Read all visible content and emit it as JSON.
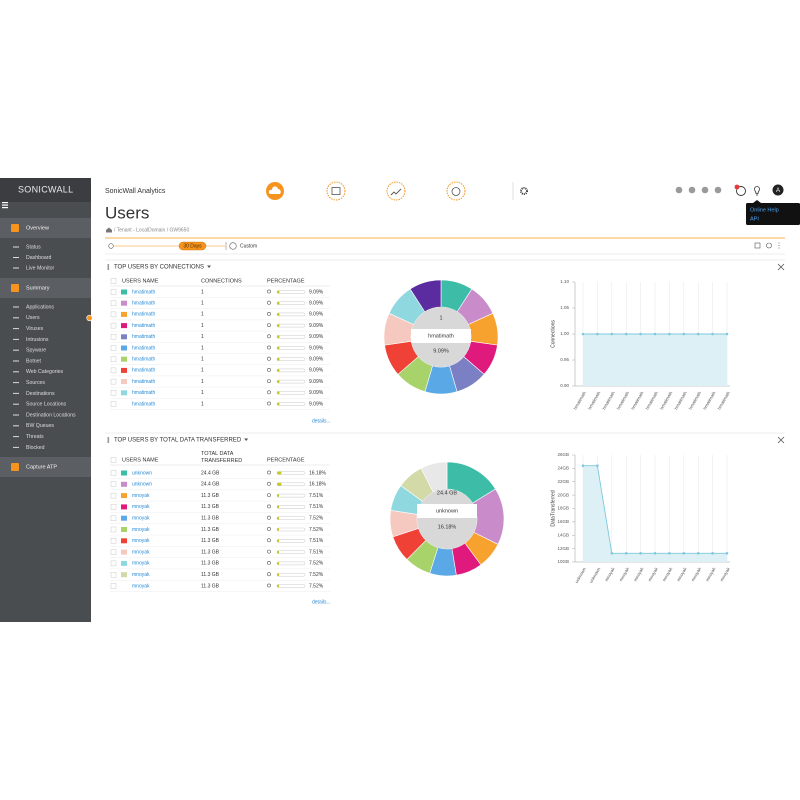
{
  "sidebar": {
    "brand": "SONICWALL",
    "groups": [
      {
        "title": "Overview",
        "items": [
          "Status",
          "Dashboard",
          "Live Monitor"
        ]
      },
      {
        "title": "Summary",
        "items": [
          "Applications",
          "Users",
          "Viruses",
          "Intrusions",
          "Spyware",
          "Botnet",
          "Web Categories",
          "Sources",
          "Destinations",
          "Source Locations",
          "Destination Locations",
          "BW Queues",
          "Threats",
          "Blocked"
        ]
      },
      {
        "title": "Capture ATP",
        "items": []
      }
    ]
  },
  "header": {
    "title": "SonicWall Analytics",
    "nav": [
      "HOME",
      "REPORTS",
      "ANALYTICS",
      "NOTIFICATIONS",
      "CONSOLE"
    ],
    "avatar": "A",
    "help_menu": [
      "Online Help",
      "API"
    ]
  },
  "page": {
    "title": "Users",
    "breadcrumb": "/ Tenant - LocalDomain / GW9650",
    "range": "30 Days",
    "custom": "Custom"
  },
  "panels": [
    {
      "title": "TOP USERS BY CONNECTIONS",
      "columns": [
        "USERS NAME",
        "CONNECTIONS",
        "PERCENTAGE"
      ],
      "details": "details...",
      "rows": [
        {
          "name": "hmatimath",
          "value": 1,
          "percentage": {
            "value": 9.09,
            "label": "9.09%"
          },
          "color": "#3dbda7"
        },
        {
          "name": "hmatimath",
          "value": 1,
          "percentage": {
            "value": 9.09,
            "label": "9.09%"
          },
          "color": "#c98bc9"
        },
        {
          "name": "hmatimath",
          "value": 1,
          "percentage": {
            "value": 9.09,
            "label": "9.09%"
          },
          "color": "#f7a22e"
        },
        {
          "name": "hmatimath",
          "value": 1,
          "percentage": {
            "value": 9.09,
            "label": "9.09%"
          },
          "color": "#e0197d"
        },
        {
          "name": "hmatimath",
          "value": 1,
          "percentage": {
            "value": 9.09,
            "label": "9.09%"
          },
          "color": "#7b7fc4"
        },
        {
          "name": "hmatimath",
          "value": 1,
          "percentage": {
            "value": 9.09,
            "label": "9.09%"
          },
          "color": "#5aa9e6"
        },
        {
          "name": "hmatimath",
          "value": 1,
          "percentage": {
            "value": 9.09,
            "label": "9.09%"
          },
          "color": "#a8d26a"
        },
        {
          "name": "hmatimath",
          "value": 1,
          "percentage": {
            "value": 9.09,
            "label": "9.09%"
          },
          "color": "#ef4136"
        },
        {
          "name": "hmatimath",
          "value": 1,
          "percentage": {
            "value": 9.09,
            "label": "9.09%"
          },
          "color": "#f6c9c0"
        },
        {
          "name": "hmatimath",
          "value": 1,
          "percentage": {
            "value": 9.09,
            "label": "9.09%"
          },
          "color": "#8fd8e0"
        },
        {
          "name": "hmatimath",
          "value": 1,
          "percentage": {
            "value": 9.09,
            "label": "9.09%"
          },
          "color": "#5b2ca0"
        }
      ],
      "chart": {
        "y_label": "Connections",
        "ylim": [
          0.9,
          1.1
        ],
        "yticks": [
          {
            "value": 1.1,
            "label": "1.10"
          },
          1.05,
          {
            "value": 1,
            "label": "1.00"
          },
          0.95,
          {
            "value": 0.9,
            "label": "0.90"
          }
        ]
      }
    },
    {
      "title": "TOP USERS BY TOTAL DATA TRANSFERRED",
      "columns": [
        "USERS NAME",
        "TOTAL DATA TRANSFERRED",
        "PERCENTAGE"
      ],
      "details": "details...",
      "rows": [
        {
          "name": "unknown",
          "value": {
            "value": 24.4,
            "label": "24.4 GB"
          },
          "percentage": {
            "value": 16.18,
            "label": "16.18%"
          },
          "color": "#3dbda7"
        },
        {
          "name": "unknown",
          "value": {
            "value": 24.4,
            "label": "24.4 GB"
          },
          "percentage": {
            "value": 16.18,
            "label": "16.18%"
          },
          "color": "#c98bc9"
        },
        {
          "name": "mnoyak",
          "value": {
            "value": 11.3,
            "label": "11.3 GB"
          },
          "percentage": {
            "value": 7.51,
            "label": "7.51%"
          },
          "color": "#f7a22e"
        },
        {
          "name": "mnoyak",
          "value": {
            "value": 11.3,
            "label": "11.3 GB"
          },
          "percentage": {
            "value": 7.51,
            "label": "7.51%"
          },
          "color": "#e0197d"
        },
        {
          "name": "mnoyak",
          "value": {
            "value": 11.3,
            "label": "11.3 GB"
          },
          "percentage": {
            "value": 7.52,
            "label": "7.52%"
          },
          "color": "#5aa9e6"
        },
        {
          "name": "mnoyak",
          "value": {
            "value": 11.3,
            "label": "11.3 GB"
          },
          "percentage": {
            "value": 7.52,
            "label": "7.52%"
          },
          "color": "#a8d26a"
        },
        {
          "name": "mnoyak",
          "value": {
            "value": 11.3,
            "label": "11.3 GB"
          },
          "percentage": {
            "value": 7.51,
            "label": "7.51%"
          },
          "color": "#ef4136"
        },
        {
          "name": "mnoyak",
          "value": {
            "value": 11.3,
            "label": "11.3 GB"
          },
          "percentage": {
            "value": 7.51,
            "label": "7.51%"
          },
          "color": "#f6c9c0"
        },
        {
          "name": "mnoyak",
          "value": {
            "value": 11.3,
            "label": "11.3 GB"
          },
          "percentage": {
            "value": 7.52,
            "label": "7.52%"
          },
          "color": "#8fd8e0"
        },
        {
          "name": "mnoyak",
          "value": {
            "value": 11.3,
            "label": "11.3 GB"
          },
          "percentage": {
            "value": 7.52,
            "label": "7.52%"
          },
          "color": "#d4d9a8"
        },
        {
          "name": "mnoyak",
          "value": {
            "value": 11.3,
            "label": "11.3 GB"
          },
          "percentage": {
            "value": 7.52,
            "label": "7.52%"
          },
          "color": "#e8e8e8"
        }
      ],
      "chart": {
        "y_label": "DataTransferred",
        "ylim": [
          10,
          26
        ],
        "yticks": [
          {
            "value": 26,
            "label": "26GB"
          },
          {
            "value": 24,
            "label": "24GB"
          },
          {
            "value": 22,
            "label": "22GB"
          },
          {
            "value": 20,
            "label": "20GB"
          },
          {
            "value": 18,
            "label": "18GB"
          },
          {
            "value": 16,
            "label": "16GB"
          },
          {
            "value": 14,
            "label": "14GB"
          },
          {
            "value": 12,
            "label": "12GB"
          },
          {
            "value": 10,
            "label": "10GB"
          }
        ]
      }
    }
  ]
}
